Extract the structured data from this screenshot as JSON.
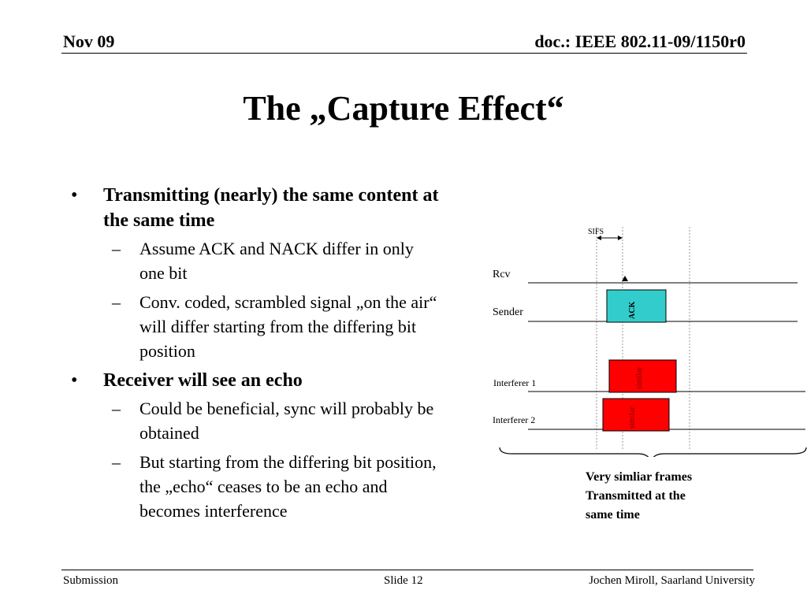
{
  "header": {
    "date": "Nov 09",
    "doc_id": "doc.: IEEE 802.11-09/1150r0"
  },
  "slide_title": "The „Capture Effect“",
  "bullets": [
    {
      "marker": "•",
      "text": "Transmitting (nearly) the same content at the same time",
      "sub": [
        {
          "marker": "–",
          "text": "Assume ACK and NACK differ in only one bit"
        },
        {
          "marker": "–",
          "text": "Conv. coded, scrambled signal „on the air“ will differ starting from the differing bit position"
        }
      ]
    },
    {
      "marker": "•",
      "text": "Receiver will see an echo",
      "sub": [
        {
          "marker": "–",
          "text": "Could be beneficial, sync will probably be obtained"
        },
        {
          "marker": "–",
          "text": "But starting from the differing bit position, the „echo“ ceases to be an echo and becomes interference"
        }
      ]
    }
  ],
  "diagram": {
    "sifs_label": "SIFS",
    "rows": {
      "rcv": "Rcv",
      "sender": "Sender",
      "interferer1": "Interferer 1",
      "interferer2": "Interferer 2"
    },
    "frames": {
      "ack": "ACK",
      "similar1": "similar",
      "similar2": "similar"
    },
    "colors": {
      "ack_fill": "#33cccc",
      "interferer_fill": "#ff0000",
      "interferer_text": "#7a0000"
    }
  },
  "caption": {
    "line1": "Very simliar frames",
    "line2": "Transmitted at the",
    "line3": "same time"
  },
  "footer": {
    "left": "Submission",
    "center": "Slide 12",
    "right": "Jochen Miroll, Saarland University"
  }
}
